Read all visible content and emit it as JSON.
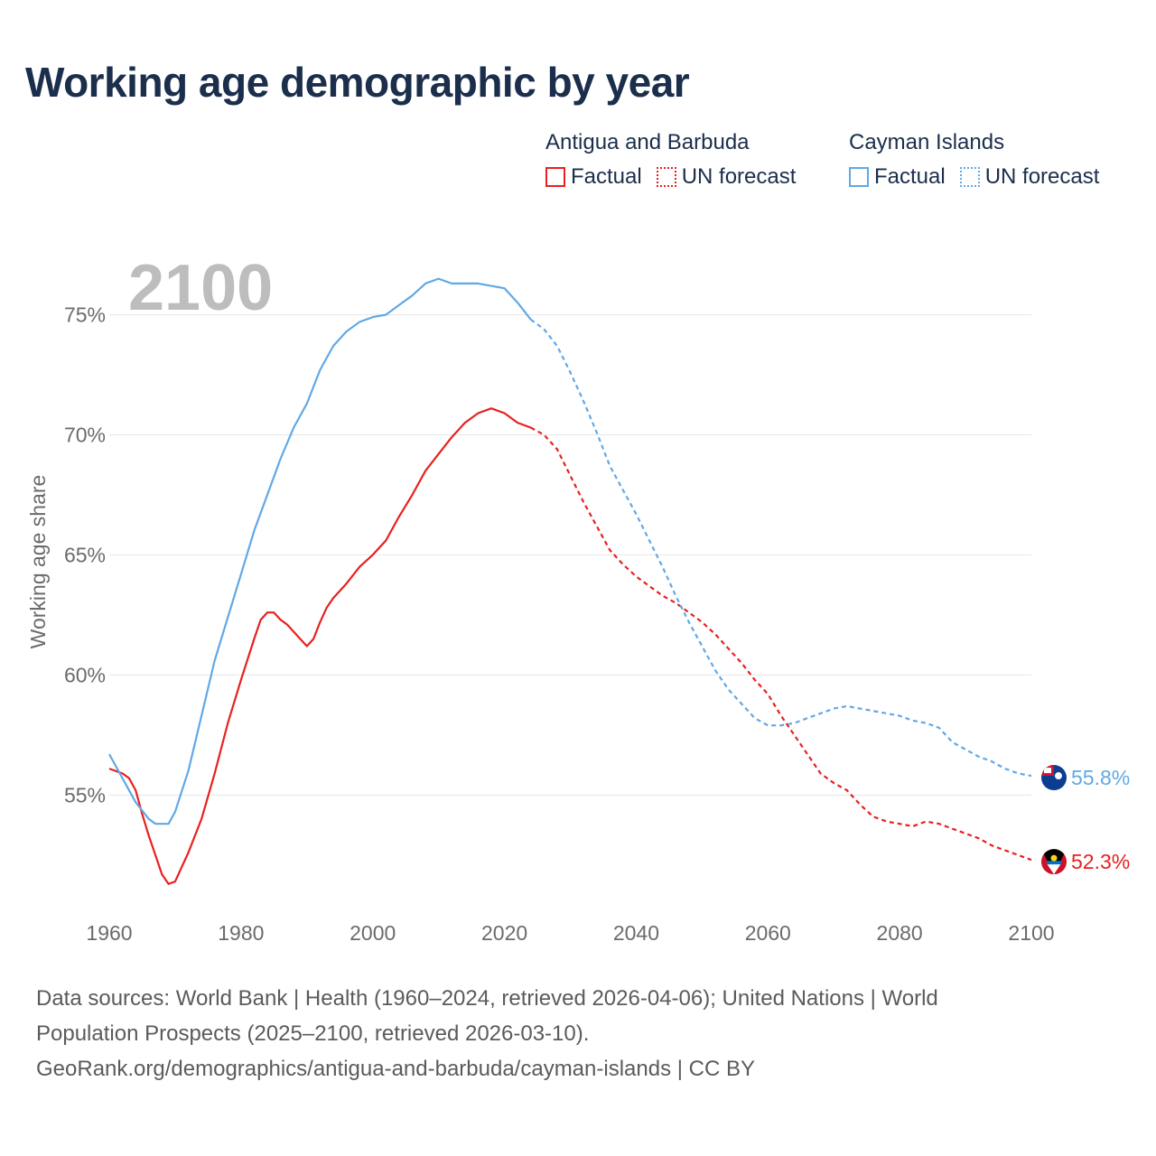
{
  "title": "Working age demographic by year",
  "legend": {
    "groups": [
      {
        "name": "Antigua and Barbuda",
        "color": "#e8201f",
        "factual_label": "Factual",
        "forecast_label": "UN forecast"
      },
      {
        "name": "Cayman Islands",
        "color": "#61a8e6",
        "factual_label": "Factual",
        "forecast_label": "UN forecast"
      }
    ]
  },
  "footer": {
    "line1": "Data sources: World Bank | Health (1960–2024, retrieved 2026-04-06); United Nations | World",
    "line2": "Population Prospects (2025–2100, retrieved 2026-03-10).",
    "line3": "GeoRank.org/demographics/antigua-and-barbuda/cayman-islands | CC BY"
  },
  "chart_data": {
    "type": "line",
    "title": "Working age demographic by year",
    "year_watermark": "2100",
    "ylabel": "Working age share",
    "xlabel": "",
    "xlim": [
      1960,
      2100
    ],
    "ylim": [
      50.5,
      77.5
    ],
    "x_ticks": [
      "1960",
      "1980",
      "2000",
      "2020",
      "2040",
      "2060",
      "2080",
      "2100"
    ],
    "y_ticks": [
      "55%",
      "60%",
      "65%",
      "70%",
      "75%"
    ],
    "grid": true,
    "factual_until": 2024,
    "series": [
      {
        "name": "Antigua and Barbuda",
        "color": "#e8201f",
        "end_label": "52.3%",
        "flag": "antigua-flag-icon",
        "points": [
          [
            1960,
            56.1
          ],
          [
            1962,
            55.9
          ],
          [
            1963,
            55.7
          ],
          [
            1964,
            55.2
          ],
          [
            1965,
            54.2
          ],
          [
            1966,
            53.3
          ],
          [
            1967,
            52.5
          ],
          [
            1968,
            51.7
          ],
          [
            1969,
            51.3
          ],
          [
            1970,
            51.4
          ],
          [
            1972,
            52.6
          ],
          [
            1974,
            54.0
          ],
          [
            1976,
            55.9
          ],
          [
            1978,
            58.0
          ],
          [
            1980,
            59.8
          ],
          [
            1982,
            61.5
          ],
          [
            1983,
            62.3
          ],
          [
            1984,
            62.6
          ],
          [
            1985,
            62.6
          ],
          [
            1986,
            62.3
          ],
          [
            1987,
            62.1
          ],
          [
            1988,
            61.8
          ],
          [
            1989,
            61.5
          ],
          [
            1990,
            61.2
          ],
          [
            1991,
            61.5
          ],
          [
            1992,
            62.2
          ],
          [
            1993,
            62.8
          ],
          [
            1994,
            63.2
          ],
          [
            1996,
            63.8
          ],
          [
            1998,
            64.5
          ],
          [
            2000,
            65.0
          ],
          [
            2002,
            65.6
          ],
          [
            2004,
            66.6
          ],
          [
            2006,
            67.5
          ],
          [
            2008,
            68.5
          ],
          [
            2010,
            69.2
          ],
          [
            2012,
            69.9
          ],
          [
            2014,
            70.5
          ],
          [
            2016,
            70.9
          ],
          [
            2018,
            71.1
          ],
          [
            2020,
            70.9
          ],
          [
            2022,
            70.5
          ],
          [
            2024,
            70.3
          ],
          [
            2026,
            70.0
          ],
          [
            2028,
            69.4
          ],
          [
            2030,
            68.3
          ],
          [
            2032,
            67.2
          ],
          [
            2034,
            66.2
          ],
          [
            2036,
            65.2
          ],
          [
            2038,
            64.6
          ],
          [
            2040,
            64.1
          ],
          [
            2042,
            63.7
          ],
          [
            2044,
            63.3
          ],
          [
            2046,
            63.0
          ],
          [
            2048,
            62.6
          ],
          [
            2050,
            62.2
          ],
          [
            2052,
            61.7
          ],
          [
            2054,
            61.1
          ],
          [
            2056,
            60.5
          ],
          [
            2058,
            59.8
          ],
          [
            2060,
            59.2
          ],
          [
            2062,
            58.3
          ],
          [
            2064,
            57.5
          ],
          [
            2066,
            56.7
          ],
          [
            2068,
            55.9
          ],
          [
            2070,
            55.5
          ],
          [
            2072,
            55.2
          ],
          [
            2074,
            54.6
          ],
          [
            2076,
            54.1
          ],
          [
            2078,
            53.9
          ],
          [
            2080,
            53.8
          ],
          [
            2082,
            53.7
          ],
          [
            2084,
            53.9
          ],
          [
            2086,
            53.8
          ],
          [
            2088,
            53.6
          ],
          [
            2090,
            53.4
          ],
          [
            2092,
            53.2
          ],
          [
            2094,
            52.9
          ],
          [
            2096,
            52.7
          ],
          [
            2098,
            52.5
          ],
          [
            2100,
            52.3
          ]
        ]
      },
      {
        "name": "Cayman Islands",
        "color": "#61a8e6",
        "end_label": "55.8%",
        "flag": "cayman-flag-icon",
        "points": [
          [
            1960,
            56.7
          ],
          [
            1962,
            55.7
          ],
          [
            1964,
            54.7
          ],
          [
            1966,
            54.0
          ],
          [
            1967,
            53.8
          ],
          [
            1968,
            53.8
          ],
          [
            1969,
            53.8
          ],
          [
            1970,
            54.3
          ],
          [
            1972,
            56.0
          ],
          [
            1974,
            58.3
          ],
          [
            1976,
            60.6
          ],
          [
            1978,
            62.4
          ],
          [
            1980,
            64.2
          ],
          [
            1982,
            66.0
          ],
          [
            1984,
            67.5
          ],
          [
            1986,
            69.0
          ],
          [
            1988,
            70.3
          ],
          [
            1990,
            71.3
          ],
          [
            1992,
            72.7
          ],
          [
            1994,
            73.7
          ],
          [
            1996,
            74.3
          ],
          [
            1998,
            74.7
          ],
          [
            2000,
            74.9
          ],
          [
            2002,
            75.0
          ],
          [
            2004,
            75.4
          ],
          [
            2006,
            75.8
          ],
          [
            2008,
            76.3
          ],
          [
            2010,
            76.5
          ],
          [
            2012,
            76.3
          ],
          [
            2014,
            76.3
          ],
          [
            2016,
            76.3
          ],
          [
            2018,
            76.2
          ],
          [
            2020,
            76.1
          ],
          [
            2022,
            75.5
          ],
          [
            2024,
            74.8
          ],
          [
            2026,
            74.4
          ],
          [
            2028,
            73.7
          ],
          [
            2030,
            72.6
          ],
          [
            2032,
            71.4
          ],
          [
            2034,
            70.1
          ],
          [
            2036,
            68.7
          ],
          [
            2038,
            67.7
          ],
          [
            2040,
            66.7
          ],
          [
            2042,
            65.6
          ],
          [
            2044,
            64.5
          ],
          [
            2046,
            63.3
          ],
          [
            2048,
            62.2
          ],
          [
            2050,
            61.2
          ],
          [
            2052,
            60.2
          ],
          [
            2054,
            59.4
          ],
          [
            2056,
            58.8
          ],
          [
            2058,
            58.2
          ],
          [
            2060,
            57.9
          ],
          [
            2062,
            57.9
          ],
          [
            2064,
            58.0
          ],
          [
            2066,
            58.2
          ],
          [
            2068,
            58.4
          ],
          [
            2070,
            58.6
          ],
          [
            2072,
            58.7
          ],
          [
            2074,
            58.6
          ],
          [
            2076,
            58.5
          ],
          [
            2078,
            58.4
          ],
          [
            2080,
            58.3
          ],
          [
            2082,
            58.1
          ],
          [
            2084,
            58.0
          ],
          [
            2086,
            57.8
          ],
          [
            2088,
            57.2
          ],
          [
            2090,
            56.9
          ],
          [
            2092,
            56.6
          ],
          [
            2094,
            56.4
          ],
          [
            2096,
            56.1
          ],
          [
            2098,
            55.9
          ],
          [
            2100,
            55.8
          ]
        ]
      }
    ]
  }
}
